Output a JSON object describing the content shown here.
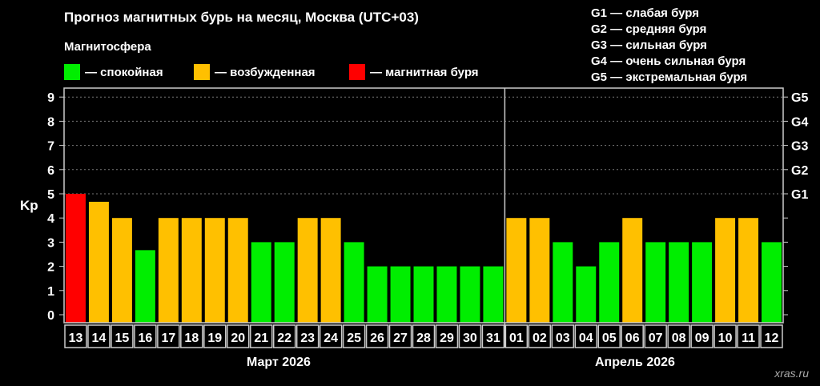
{
  "title": "Прогноз магнитных бурь на месяц, Москва (UTC+03)",
  "legend": {
    "title": "Магнитосфера",
    "items": [
      {
        "label": "— спокойная",
        "color": "#00ee00"
      },
      {
        "label": "— возбужденная",
        "color": "#ffc000"
      },
      {
        "label": "— магнитная буря",
        "color": "#ff0000"
      }
    ]
  },
  "g_scale": [
    "G1 — слабая буря",
    "G2 — средняя буря",
    "G3 — сильная буря",
    "G4 — очень сильная буря",
    "G5 — экстремальная буря"
  ],
  "brand": "xras.ru",
  "chart_data": {
    "type": "bar",
    "ylabel": "Kp",
    "ylim": [
      0,
      9
    ],
    "yticks": [
      "0",
      "1",
      "2",
      "3",
      "4",
      "5",
      "6",
      "7",
      "8",
      "9"
    ],
    "right_ticks": [
      {
        "kp": 5,
        "label": "G1"
      },
      {
        "kp": 6,
        "label": "G2"
      },
      {
        "kp": 7,
        "label": "G3"
      },
      {
        "kp": 8,
        "label": "G4"
      },
      {
        "kp": 9,
        "label": "G5"
      }
    ],
    "grid": "dashed horizontal at 5–9",
    "months": [
      {
        "label": "Март 2026",
        "days": 19
      },
      {
        "label": "Апрель 2026",
        "days": 12
      }
    ],
    "categories": [
      "13",
      "14",
      "15",
      "16",
      "17",
      "18",
      "19",
      "20",
      "21",
      "22",
      "23",
      "24",
      "25",
      "26",
      "27",
      "28",
      "29",
      "30",
      "31",
      "01",
      "02",
      "03",
      "04",
      "05",
      "06",
      "07",
      "08",
      "09",
      "10",
      "11",
      "12"
    ],
    "values": [
      5,
      4.67,
      4,
      2.67,
      4,
      4,
      4,
      4,
      3,
      3,
      4,
      4,
      3,
      2,
      2,
      2,
      2,
      2,
      2,
      4,
      4,
      3,
      2,
      3,
      4,
      3,
      3,
      3,
      4,
      4,
      3
    ]
  }
}
